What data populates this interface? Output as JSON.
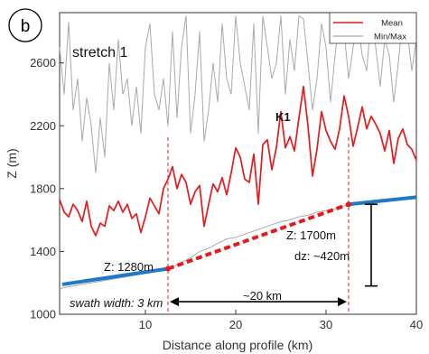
{
  "chart_data": {
    "type": "line",
    "panel_label": "b",
    "stretch_label": "stretch 1",
    "xlabel": "Distance along profile (km)",
    "ylabel": "Z (m)",
    "xlim": [
      0.5,
      40
    ],
    "ylim": [
      1000,
      2920
    ],
    "x_ticks": [
      10,
      20,
      30,
      40
    ],
    "y_ticks": [
      1000,
      1400,
      1800,
      2200,
      2600
    ],
    "grid": false,
    "legend_position": "top-right",
    "series": [
      {
        "name": "Mean",
        "color": "#e41a1c",
        "x": [
          0.5,
          1,
          1.5,
          2,
          2.5,
          3,
          3.5,
          4,
          4.5,
          5,
          5.5,
          6,
          6.5,
          7,
          7.5,
          8,
          8.5,
          9,
          9.5,
          10,
          10.5,
          11,
          11.5,
          12,
          12.5,
          13,
          13.5,
          14,
          14.5,
          15,
          15.5,
          16,
          16.5,
          17,
          17.5,
          18,
          18.5,
          19,
          19.5,
          20,
          20.5,
          21,
          21.5,
          22,
          22.5,
          23,
          23.5,
          24,
          24.5,
          25,
          25.5,
          26,
          26.5,
          27,
          27.5,
          28,
          28.5,
          29,
          29.5,
          30,
          30.5,
          31,
          31.5,
          32,
          32.5,
          33,
          33.5,
          34,
          34.5,
          35,
          35.5,
          36,
          36.5,
          37,
          37.5,
          38,
          38.5,
          39,
          39.5,
          40
        ],
        "y": [
          1730,
          1650,
          1620,
          1700,
          1660,
          1590,
          1720,
          1560,
          1500,
          1580,
          1560,
          1690,
          1660,
          1720,
          1650,
          1700,
          1610,
          1640,
          1520,
          1620,
          1740,
          1690,
          1640,
          1800,
          1860,
          1940,
          1800,
          1890,
          1840,
          1700,
          1780,
          1820,
          1560,
          1700,
          1830,
          1780,
          1870,
          1760,
          1900,
          2060,
          2000,
          1860,
          1840,
          2020,
          1700,
          2080,
          2110,
          1920,
          2060,
          2290,
          2060,
          2130,
          2040,
          2250,
          2450,
          2200,
          1880,
          2050,
          2290,
          2170,
          2100,
          2050,
          2180,
          2390,
          2260,
          2070,
          2190,
          2320,
          2180,
          2260,
          2210,
          2150,
          2040,
          2170,
          1960,
          2120,
          2180,
          2080,
          2050,
          1980
        ]
      },
      {
        "name": "Min/Max",
        "color": "#a9a9a9",
        "x": [
          0.5,
          1,
          1.5,
          2,
          2.5,
          3,
          3.5,
          4,
          4.5,
          5,
          5.5,
          6,
          6.5,
          7,
          7.5,
          8,
          8.5,
          9,
          9.5,
          10,
          10.5,
          11,
          11.5,
          12,
          12.5,
          13,
          13.5,
          14,
          14.5,
          15,
          15.5,
          16,
          16.5,
          17,
          17.5,
          18,
          18.5,
          19,
          19.5,
          20,
          20.5,
          21,
          21.5,
          22,
          22.5,
          23,
          23.5,
          24,
          24.5,
          25,
          25.5,
          26,
          26.5,
          27,
          27.5,
          28,
          28.5,
          29,
          29.5,
          30,
          30.5,
          31,
          31.5,
          32,
          32.5,
          33,
          33.5,
          34,
          34.5,
          35,
          35.5,
          36,
          36.5,
          37,
          37.5,
          38,
          38.5,
          39,
          39.5,
          40
        ],
        "y": [
          2700,
          2400,
          2860,
          2300,
          2500,
          2100,
          2380,
          2200,
          1900,
          2250,
          2000,
          2600,
          2300,
          2750,
          2400,
          2500,
          2200,
          2450,
          2150,
          2700,
          2850,
          2400,
          2300,
          2500,
          2200,
          2800,
          2250,
          2700,
          2900,
          2150,
          2400,
          2800,
          2100,
          2300,
          2600,
          2350,
          2850,
          2500,
          2400,
          2900,
          2600,
          2450,
          2300,
          2850,
          2150,
          2900,
          2700,
          2500,
          2600,
          2900,
          2400,
          2750,
          2550,
          2900,
          2880,
          2600,
          2300,
          2500,
          2850,
          2700,
          2350,
          2650,
          2900,
          2800,
          2500,
          2700,
          2860,
          2650,
          2550,
          2900,
          2700,
          2450,
          2750,
          2650,
          2350,
          2600,
          2900,
          2800,
          2550,
          2750
        ]
      },
      {
        "name": "Min",
        "color": "#a9a9a9",
        "x": [
          0.5,
          1,
          2,
          3,
          4,
          5,
          6,
          7,
          8,
          9,
          10,
          11,
          12,
          12.5,
          13,
          14,
          15,
          16,
          17,
          18,
          19,
          20,
          21,
          22,
          23,
          24,
          25,
          26,
          27,
          28,
          29,
          30,
          31,
          32,
          32.5,
          33,
          34,
          35,
          36,
          37,
          38,
          39,
          40
        ],
        "y": [
          1160,
          1170,
          1180,
          1190,
          1200,
          1210,
          1220,
          1230,
          1240,
          1250,
          1260,
          1270,
          1280,
          1282,
          1300,
          1330,
          1360,
          1400,
          1420,
          1450,
          1480,
          1490,
          1510,
          1530,
          1550,
          1570,
          1590,
          1600,
          1620,
          1630,
          1650,
          1660,
          1670,
          1690,
          1700,
          1700,
          1710,
          1715,
          1720,
          1725,
          1730,
          1735,
          1745
        ]
      }
    ],
    "fits": [
      {
        "name": "lower-fit",
        "color": "#1f78c8",
        "x": [
          0.8,
          12.5
        ],
        "y": [
          1190,
          1290
        ]
      },
      {
        "name": "slope-fit",
        "color": "#e41a1c",
        "x": [
          12.5,
          32.5
        ],
        "y": [
          1290,
          1700
        ]
      },
      {
        "name": "upper-fit",
        "color": "#1f78c8",
        "x": [
          32.5,
          40
        ],
        "y": [
          1700,
          1745
        ]
      }
    ],
    "markers": [
      {
        "x": 12.5,
        "y": 1290,
        "color": "#e41a1c"
      },
      {
        "x": 32.5,
        "y": 1700,
        "color": "#e41a1c"
      }
    ],
    "vlines": [
      12.5,
      32.5
    ],
    "annotations": {
      "peak_label": "K1",
      "z_low": "Z: 1280m",
      "z_high": "Z: 1700m",
      "dz": "dz: ~420m",
      "distance": "~20 km",
      "swath": "swath width: 3 km"
    },
    "distance_arrow": {
      "x_from": 12.5,
      "x_to": 32.5,
      "y": 1080
    },
    "dz_bar": {
      "x": 35,
      "y_from": 1180,
      "y_to": 1700
    }
  }
}
